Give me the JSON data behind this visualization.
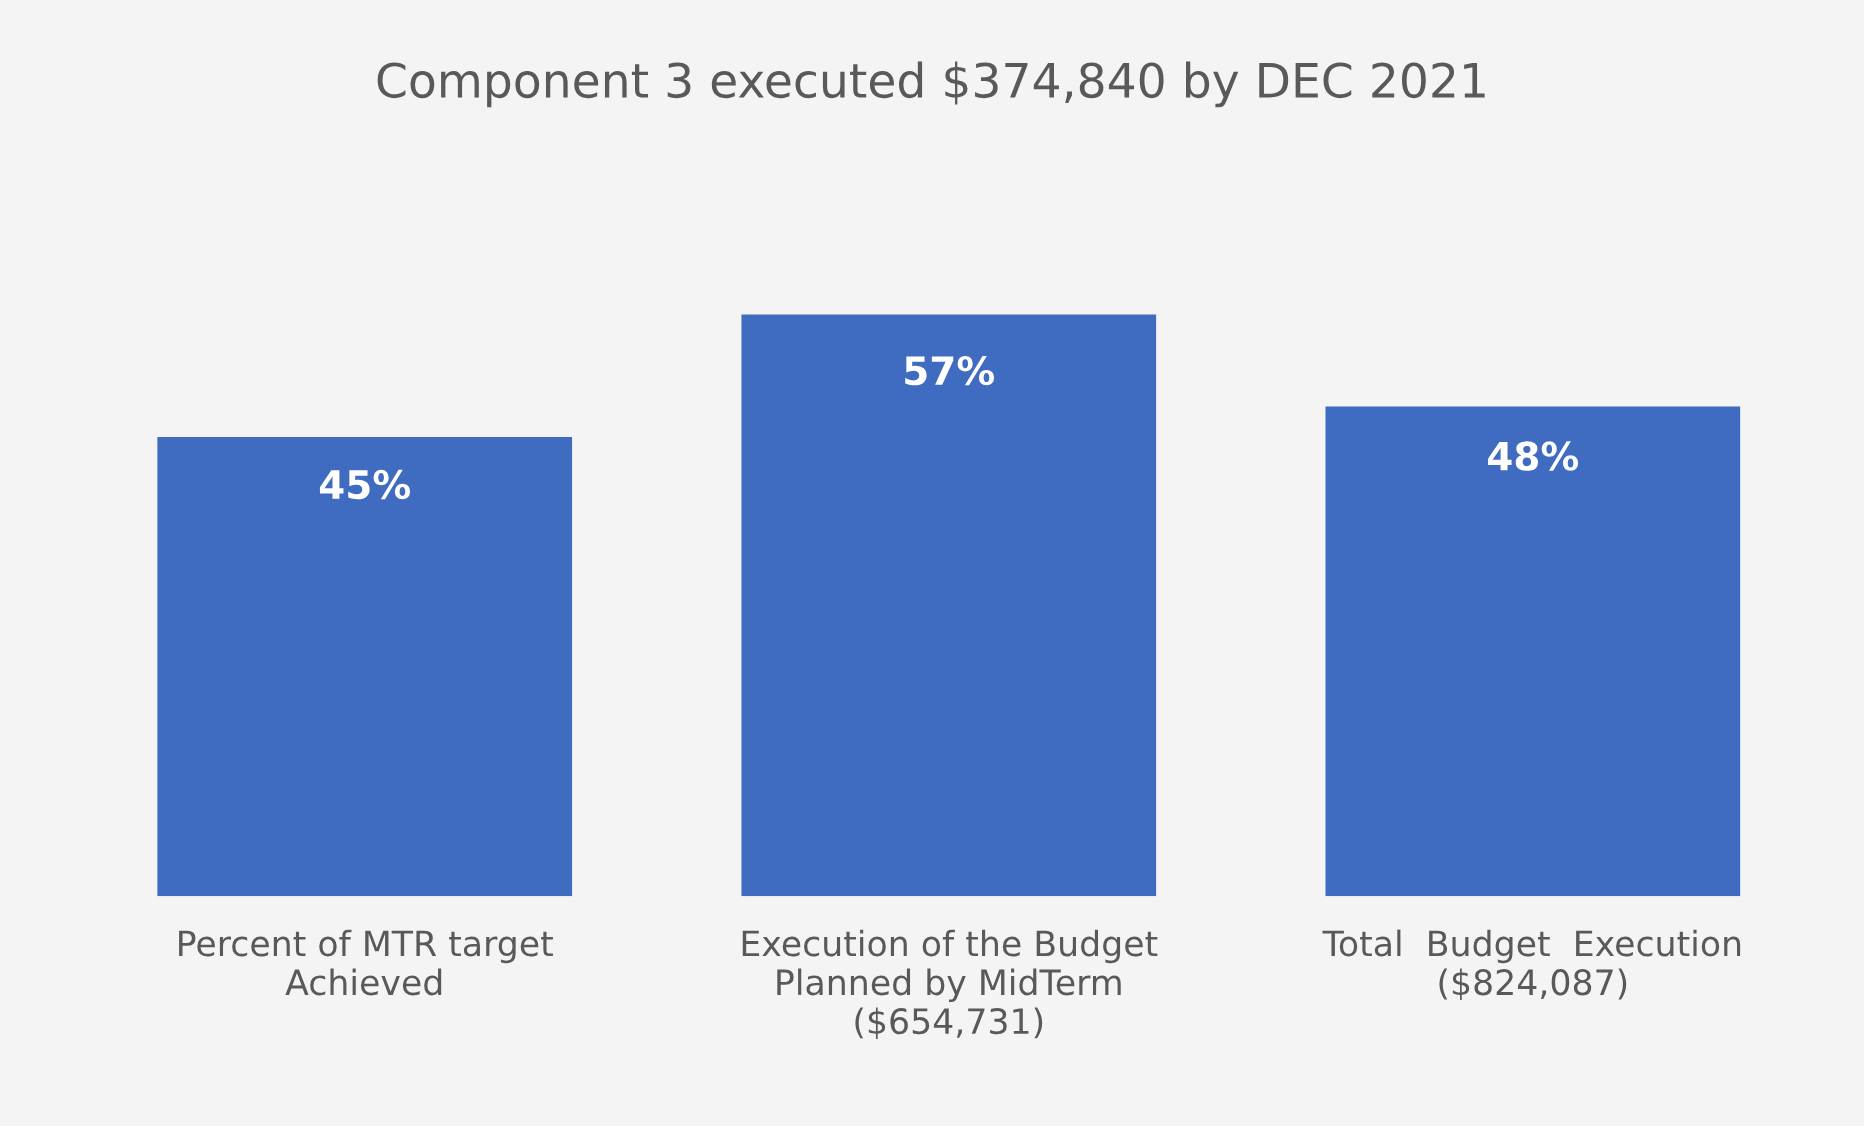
{
  "chart_data": {
    "type": "bar",
    "title": "Component 3 executed $374,840 by DEC 2021",
    "categories": [
      "Percent of MTR target\nAchieved",
      "Execution of the Budget\nPlanned by MidTerm\n($654,731)",
      "Total  Budget  Execution\n($824,087)"
    ],
    "values": [
      45,
      57,
      48
    ],
    "color": "#3f6cc0",
    "value_labels": [
      "45%",
      "57%",
      "48%"
    ],
    "grid": false,
    "legend": false
  }
}
